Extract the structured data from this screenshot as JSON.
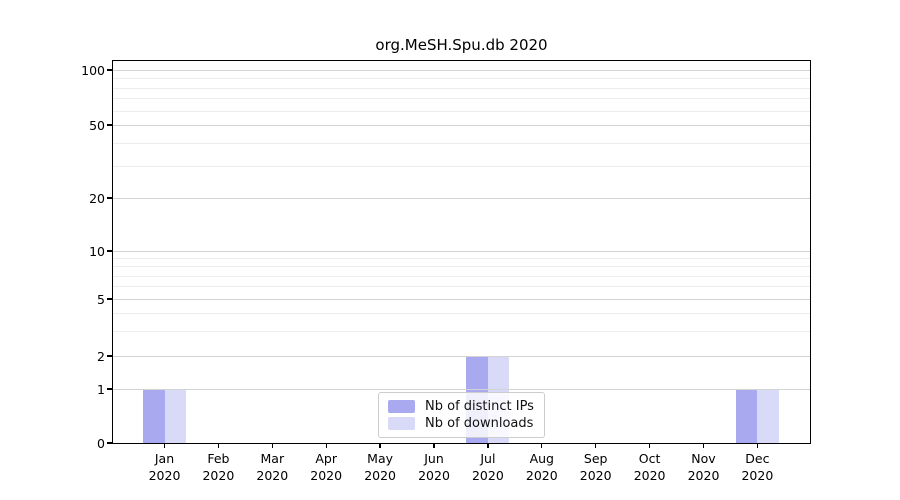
{
  "title": "org.MeSH.Spu.db 2020",
  "chart_data": {
    "type": "bar",
    "title": "org.MeSH.Spu.db 2020",
    "x_tick_months": [
      "Jan",
      "Feb",
      "Mar",
      "Apr",
      "May",
      "Jun",
      "Jul",
      "Aug",
      "Sep",
      "Oct",
      "Nov",
      "Dec"
    ],
    "x_tick_year": "2020",
    "series": [
      {
        "name": "Nb of distinct IPs",
        "color": "#a9a9f0",
        "values": [
          1,
          0,
          0,
          0,
          0,
          0,
          2,
          0,
          0,
          0,
          0,
          1
        ]
      },
      {
        "name": "Nb of downloads",
        "color": "#d9d9f8",
        "values": [
          1,
          0,
          0,
          0,
          0,
          0,
          2,
          0,
          0,
          0,
          0,
          1
        ]
      }
    ],
    "y_axis": {
      "scale": "log-like",
      "major_ticks": [
        0,
        1,
        2,
        5,
        10,
        20,
        50,
        100
      ],
      "minor_gridlines": [
        3,
        4,
        6,
        7,
        8,
        9,
        30,
        40,
        60,
        70,
        80,
        90
      ],
      "ylim_top": 100
    },
    "legend": {
      "entries": [
        "Nb of distinct IPs",
        "Nb of downloads"
      ],
      "position": "bottom-center"
    },
    "grid": true,
    "colors": {
      "major_grid": "#d3d3d3",
      "minor_grid": "#ededed",
      "axis": "#000000",
      "background": "#ffffff"
    }
  }
}
